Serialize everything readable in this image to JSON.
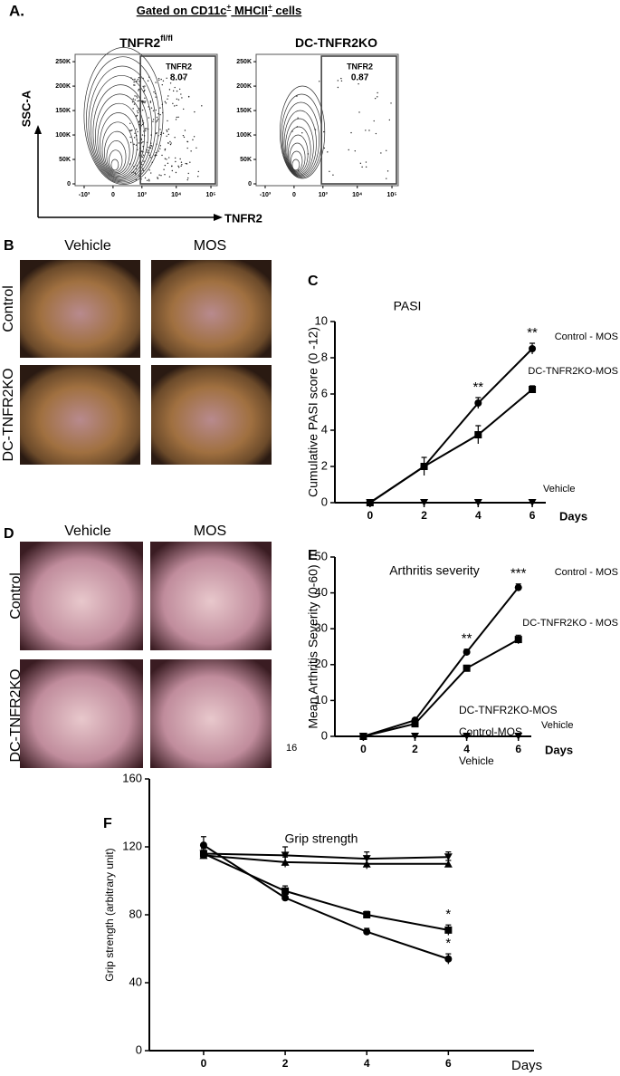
{
  "panel_labels": [
    "A.",
    "B",
    "C",
    "D",
    "E",
    "F"
  ],
  "page_number": "16",
  "flow_cytometry": {
    "header": [
      {
        "text": "Gated on CD11c"
      },
      {
        "text": "+",
        "sup": true
      },
      {
        "text": " MHCII"
      },
      {
        "text": "+",
        "sup": true
      },
      {
        "text": " cells"
      }
    ],
    "x_label": "TNFR2",
    "y_label": "SSC-A",
    "x_scale": "biexponential",
    "xlim": [
      -1850,
      152000
    ],
    "ylim": [
      -3700,
      265000
    ],
    "gate_x": [
      900,
      152000
    ],
    "xticks": [
      {
        "value": -1000,
        "label": "-10³"
      },
      0,
      {
        "value": 1000,
        "label": "10³"
      },
      {
        "value": 10000,
        "label": "10⁴"
      },
      {
        "value": 100000,
        "label": "10⁵"
      }
    ],
    "yticks": [
      0,
      {
        "value": 50000,
        "label": "50K"
      },
      {
        "value": 100000,
        "label": "100K"
      },
      {
        "value": 150000,
        "label": "150K"
      },
      {
        "value": 200000,
        "label": "200K"
      },
      {
        "value": 250000,
        "label": "250K"
      }
    ],
    "plots": [
      {
        "title": [
          {
            "text": "TNFR2"
          },
          {
            "text": "fl/fl",
            "sup": true
          }
        ],
        "gate_name": "TNFR2",
        "gate_value": 8.07
      },
      {
        "title": [
          {
            "text": "DC-TNFR2KO"
          }
        ],
        "gate_name": "TNFR2",
        "gate_value": 0.87
      }
    ]
  },
  "photo_panels": [
    {
      "columns": [
        "Vehicle",
        "MOS"
      ],
      "rows": [
        "Control",
        "DC-TNFR2KO"
      ]
    },
    {
      "columns": [
        "Vehicle",
        "MOS"
      ],
      "rows": [
        "Control",
        "DC-TNFR2KO"
      ]
    }
  ],
  "chart_data": [
    {
      "type": "line",
      "title": "PASI",
      "y_label": "Cumulative PASI score (0 -12)",
      "x_label": "Days",
      "x": [
        0,
        2,
        4,
        6
      ],
      "xlim": [
        -1.3,
        6.5
      ],
      "ylim": [
        0,
        10
      ],
      "yticks": [
        0,
        2,
        4,
        6,
        8,
        10
      ],
      "series": [
        {
          "name": "Control - MOS",
          "color": "#000000",
          "marker": "circle",
          "values": [
            0,
            2,
            5.5,
            8.5
          ],
          "errors": [
            0,
            0,
            0.3,
            0.3
          ],
          "significance": [
            null,
            null,
            "**",
            "**"
          ]
        },
        {
          "name": "DC-TNFR2KO-MOS",
          "color": "#000000",
          "marker": "square",
          "values": [
            0,
            2,
            3.75,
            6.25
          ],
          "errors": [
            0,
            0.5,
            0.5,
            0.2
          ]
        },
        {
          "name": "Vehicle",
          "color": "#000000",
          "marker": "triangle-down",
          "values": [
            0,
            0,
            0,
            0
          ],
          "errors": [
            0,
            0,
            0,
            0
          ]
        }
      ]
    },
    {
      "type": "line",
      "title": "Arthritis severity",
      "y_label": "Mean Arthritis Severity (0-60)",
      "x_label": "Days",
      "x": [
        0,
        2,
        4,
        6
      ],
      "xlim": [
        -1.1,
        6.5
      ],
      "ylim": [
        0,
        50
      ],
      "yticks": [
        0,
        10,
        20,
        30,
        40,
        50
      ],
      "series": [
        {
          "name": "Control - MOS",
          "color": "#000000",
          "marker": "circle",
          "values": [
            0,
            4.5,
            23.5,
            41.5
          ],
          "errors": [
            0,
            0.5,
            0.8,
            1
          ],
          "significance": [
            null,
            null,
            "**",
            "***"
          ]
        },
        {
          "name": "DC-TNFR2KO - MOS",
          "color": "#000000",
          "marker": "square",
          "values": [
            0,
            3.5,
            19,
            27
          ],
          "errors": [
            0,
            0.5,
            0.5,
            1.2
          ]
        },
        {
          "name": "Vehicle",
          "color": "#000000",
          "marker": "triangle-down",
          "values": [
            0,
            0,
            0,
            0
          ],
          "errors": [
            0,
            0,
            0,
            0
          ]
        }
      ]
    },
    {
      "type": "line",
      "title": "Grip strength",
      "y_label": "Grip strength (arbitrary unit)",
      "x_label": "Days",
      "x": [
        0,
        2,
        4,
        6
      ],
      "xlim": [
        -1.33,
        8.1
      ],
      "ylim": [
        0,
        160
      ],
      "yticks": [
        0,
        40,
        80,
        120,
        160
      ],
      "series": [
        {
          "name": "Vehicle",
          "color": "#000000",
          "marker": "triangle-down",
          "values": [
            116,
            115,
            113,
            114
          ],
          "errors": [
            2,
            5,
            4,
            3
          ]
        },
        {
          "color": "#000000",
          "marker": "triangle-up",
          "values": [
            115,
            111,
            110,
            110
          ],
          "errors": [
            2,
            3,
            3,
            2
          ]
        },
        {
          "name": "DC-TNFR2KO-MOS",
          "color": "#000000",
          "marker": "square",
          "values": [
            116,
            94,
            80,
            71
          ],
          "errors": [
            3,
            3,
            2,
            3
          ],
          "significance": [
            null,
            null,
            null,
            "*"
          ]
        },
        {
          "name": "Control-MOS",
          "color": "#000000",
          "marker": "circle",
          "values": [
            121,
            90,
            70,
            54
          ],
          "errors": [
            5,
            2,
            2,
            3
          ],
          "significance": [
            null,
            null,
            null,
            "*"
          ]
        }
      ]
    }
  ]
}
